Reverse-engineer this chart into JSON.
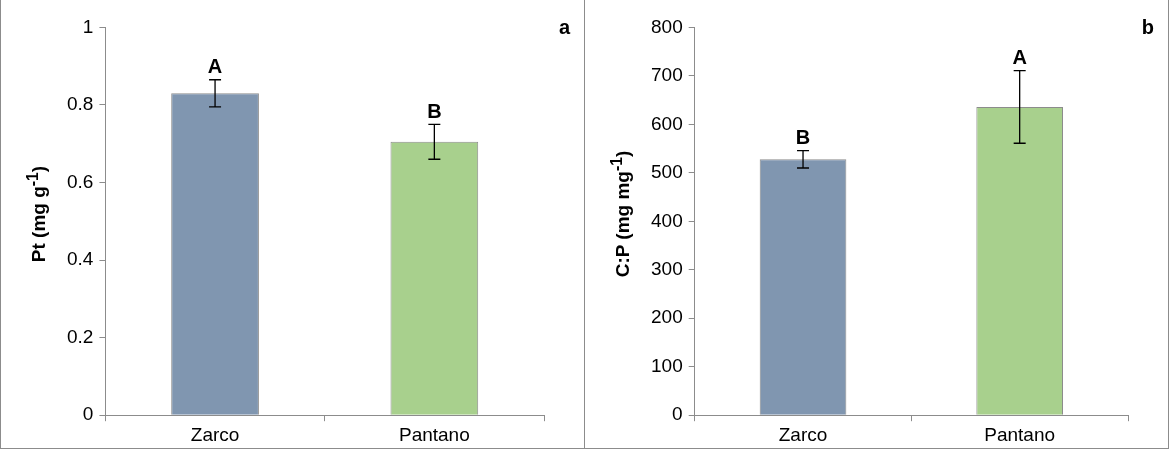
{
  "chart_data": [
    {
      "type": "bar",
      "ylabel": "Pt (mg g$^{-1}$)",
      "categories": [
        "Zarco",
        "Pantano"
      ],
      "values": [
        0.83,
        0.705
      ],
      "colors": [
        "#8096b0",
        "#a8d08d"
      ],
      "errors": [
        0.035,
        0.045
      ],
      "ylim": [
        0,
        1
      ],
      "yticks": [
        0,
        0.2,
        0.4,
        0.6,
        0.8,
        1
      ],
      "grid": false,
      "annotations": [
        {
          "text": "A",
          "x": "Zarco",
          "y": 0.865
        },
        {
          "text": "B",
          "x": "Pantano",
          "y": 0.75
        },
        "a"
      ]
    },
    {
      "type": "bar",
      "ylabel": "C:P (mg mg$^{-1}$)",
      "categories": [
        "Zarco",
        "Pantano"
      ],
      "values": [
        528,
        636
      ],
      "colors": [
        "#8096b0",
        "#a8d08d"
      ],
      "errors": [
        18,
        75
      ],
      "ylim": [
        0,
        800
      ],
      "yticks": [
        0,
        100,
        200,
        300,
        400,
        500,
        600,
        700,
        800
      ],
      "grid": false,
      "annotations": [
        {
          "text": "B",
          "x": "Zarco",
          "y": 546
        },
        {
          "text": "A",
          "x": "Pantano",
          "y": 711
        },
        "b"
      ]
    }
  ]
}
